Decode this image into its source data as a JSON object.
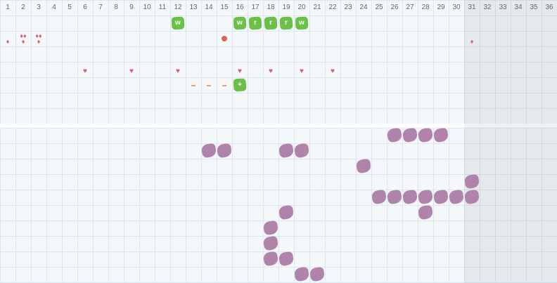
{
  "days": [
    1,
    2,
    3,
    4,
    5,
    6,
    7,
    8,
    9,
    10,
    11,
    12,
    13,
    14,
    15,
    16,
    17,
    18,
    19,
    20,
    21,
    22,
    23,
    24,
    25,
    26,
    27,
    28,
    29,
    30,
    31,
    32,
    33,
    34,
    35,
    36
  ],
  "shaded_from": 31,
  "top_rows": [
    [
      {
        "day": 12,
        "icon": "badge",
        "label": "w"
      },
      {
        "day": 16,
        "icon": "badge",
        "label": "w"
      },
      {
        "day": 17,
        "icon": "badge",
        "label": "r"
      },
      {
        "day": 18,
        "icon": "badge",
        "label": "r"
      },
      {
        "day": 19,
        "icon": "badge",
        "label": "r"
      },
      {
        "day": 20,
        "icon": "badge",
        "label": "w"
      }
    ],
    [
      {
        "day": 1,
        "icon": "drop",
        "count": 1
      },
      {
        "day": 2,
        "icon": "drop",
        "count": 3
      },
      {
        "day": 3,
        "icon": "drop",
        "count": 3
      },
      {
        "day": 15,
        "icon": "dot"
      },
      {
        "day": 31,
        "icon": "drop",
        "count": 1
      }
    ],
    [],
    [
      {
        "day": 6,
        "icon": "heart"
      },
      {
        "day": 9,
        "icon": "heart"
      },
      {
        "day": 12,
        "icon": "heart"
      },
      {
        "day": 16,
        "icon": "heart"
      },
      {
        "day": 18,
        "icon": "heart"
      },
      {
        "day": 20,
        "icon": "heart"
      },
      {
        "day": 22,
        "icon": "heart"
      }
    ],
    [
      {
        "day": 13,
        "icon": "dash"
      },
      {
        "day": 14,
        "icon": "dash"
      },
      {
        "day": 15,
        "icon": "dash"
      },
      {
        "day": 16,
        "icon": "badge",
        "label": "+"
      }
    ],
    [],
    []
  ],
  "bottom_rows": [
    [
      26,
      27,
      28,
      29
    ],
    [
      14,
      15,
      19,
      20
    ],
    [
      24
    ],
    [
      31
    ],
    [
      25,
      26,
      27,
      28,
      29,
      30,
      31
    ],
    [
      19,
      28
    ],
    [
      18
    ],
    [
      18
    ],
    [
      18,
      19
    ],
    [
      20,
      21
    ]
  ]
}
